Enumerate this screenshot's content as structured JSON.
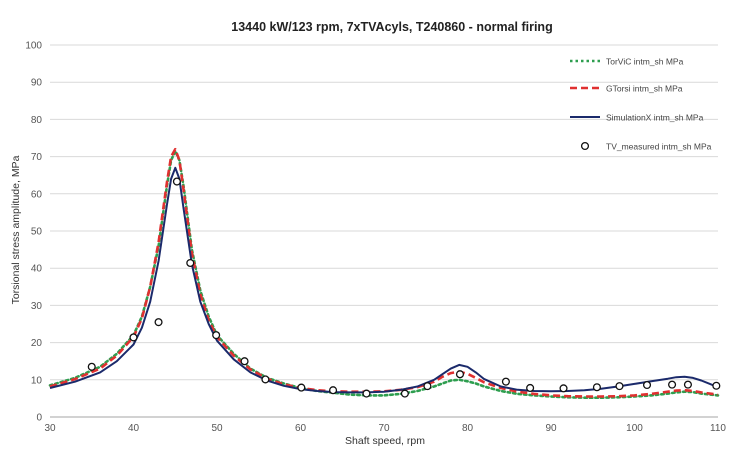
{
  "chart_data": {
    "type": "line",
    "title": "13440 kW/123 rpm, 7xTVAcyls, T240860 - normal firing",
    "xlabel": "Shaft speed, rpm",
    "ylabel": "Torsional stress amplitude, MPa",
    "xlim": [
      30,
      110
    ],
    "ylim": [
      0,
      100
    ],
    "x_ticks": [
      30,
      40,
      50,
      60,
      70,
      80,
      90,
      100,
      110
    ],
    "y_ticks": [
      0,
      10,
      20,
      30,
      40,
      50,
      60,
      70,
      80,
      90,
      100
    ],
    "grid": "horizontal",
    "legend_position": "top-right",
    "series": [
      {
        "name": "TorViC intm_sh MPa",
        "style": "dotted",
        "color": "#2e9e4f",
        "x": [
          30,
          33,
          36,
          38,
          40,
          41,
          42,
          43,
          44,
          44.5,
          45,
          45.5,
          46,
          47,
          48,
          49,
          50,
          52,
          54,
          56,
          58,
          60,
          62,
          64,
          66,
          68,
          70,
          72,
          74,
          76,
          77,
          78,
          79,
          80,
          81,
          82,
          84,
          86,
          88,
          90,
          92,
          94,
          96,
          98,
          100,
          102,
          104,
          105,
          106,
          107,
          108,
          110
        ],
        "y": [
          8.5,
          10.5,
          13.5,
          17,
          22,
          27,
          35,
          46,
          62,
          69,
          71.5,
          69,
          62,
          45,
          34,
          27,
          22,
          17,
          13,
          10.5,
          9,
          7.8,
          7,
          6.5,
          6,
          5.8,
          5.8,
          6.2,
          7,
          8.2,
          9,
          9.8,
          10,
          9.6,
          9,
          8.2,
          7,
          6.2,
          5.8,
          5.5,
          5.3,
          5.2,
          5.2,
          5.3,
          5.5,
          5.8,
          6.3,
          6.6,
          6.8,
          6.7,
          6.3,
          5.8
        ]
      },
      {
        "name": "GTorsi intm_sh MPa",
        "style": "dashed",
        "color": "#e03030",
        "x": [
          30,
          33,
          36,
          38,
          40,
          41,
          42,
          43,
          44,
          44.5,
          45,
          45.5,
          46,
          47,
          48,
          49,
          50,
          52,
          54,
          56,
          58,
          60,
          62,
          64,
          66,
          68,
          70,
          72,
          74,
          76,
          77,
          78,
          79,
          80,
          81,
          82,
          84,
          86,
          88,
          90,
          92,
          94,
          96,
          98,
          100,
          102,
          104,
          105,
          106,
          107,
          108,
          110
        ],
        "y": [
          8.2,
          10.2,
          13,
          16.5,
          21.5,
          26.5,
          35,
          47,
          63,
          70,
          72,
          69,
          61,
          44,
          33,
          26,
          21.5,
          16.5,
          12.8,
          10.3,
          8.8,
          7.8,
          7.2,
          6.9,
          6.8,
          6.8,
          6.9,
          7.3,
          8,
          9.5,
          10.8,
          11.8,
          12.2,
          11.6,
          10.5,
          9.3,
          7.8,
          6.8,
          6.2,
          5.8,
          5.6,
          5.5,
          5.5,
          5.6,
          5.8,
          6.2,
          6.8,
          7.1,
          7.2,
          7,
          6.6,
          6
        ]
      },
      {
        "name": "SimulationX intm_sh MPa",
        "style": "solid",
        "color": "#1b2a6b",
        "x": [
          30,
          33,
          36,
          38,
          40,
          41,
          42,
          43,
          44,
          44.5,
          45,
          45.5,
          46,
          47,
          48,
          49,
          50,
          52,
          54,
          56,
          58,
          60,
          62,
          64,
          66,
          68,
          70,
          72,
          74,
          76,
          77,
          78,
          79,
          80,
          81,
          82,
          84,
          86,
          88,
          90,
          92,
          94,
          96,
          98,
          100,
          102,
          104,
          105,
          106,
          107,
          108,
          110
        ],
        "y": [
          7.8,
          9.5,
          12,
          15,
          19.5,
          24,
          31,
          42,
          57,
          64,
          67,
          64,
          56,
          41,
          31,
          25,
          20.5,
          15.5,
          12,
          9.8,
          8.4,
          7.5,
          7,
          6.7,
          6.6,
          6.6,
          6.8,
          7.3,
          8.2,
          10,
          11.5,
          13,
          14,
          13.5,
          12,
          10.2,
          8.2,
          7.3,
          7,
          6.9,
          7,
          7.2,
          7.6,
          8.2,
          8.9,
          9.6,
          10.3,
          10.7,
          10.8,
          10.5,
          9.8,
          8
        ]
      },
      {
        "name": "TV_measured intm_sh MPa",
        "style": "markers",
        "color": "#111111",
        "x": [
          35,
          40,
          43,
          45.2,
          46.8,
          49.9,
          53.3,
          55.8,
          60.1,
          63.9,
          67.9,
          72.5,
          75.2,
          79.1,
          84.6,
          87.5,
          91.5,
          95.5,
          98.2,
          101.5,
          104.5,
          106.4,
          109.8
        ],
        "y": [
          13.5,
          21.4,
          25.5,
          63.3,
          41.4,
          22,
          15,
          10.1,
          7.9,
          7.2,
          6.3,
          6.3,
          8.3,
          11.5,
          9.5,
          7.8,
          7.7,
          8,
          8.3,
          8.6,
          8.7,
          8.7,
          8.4
        ]
      }
    ]
  }
}
